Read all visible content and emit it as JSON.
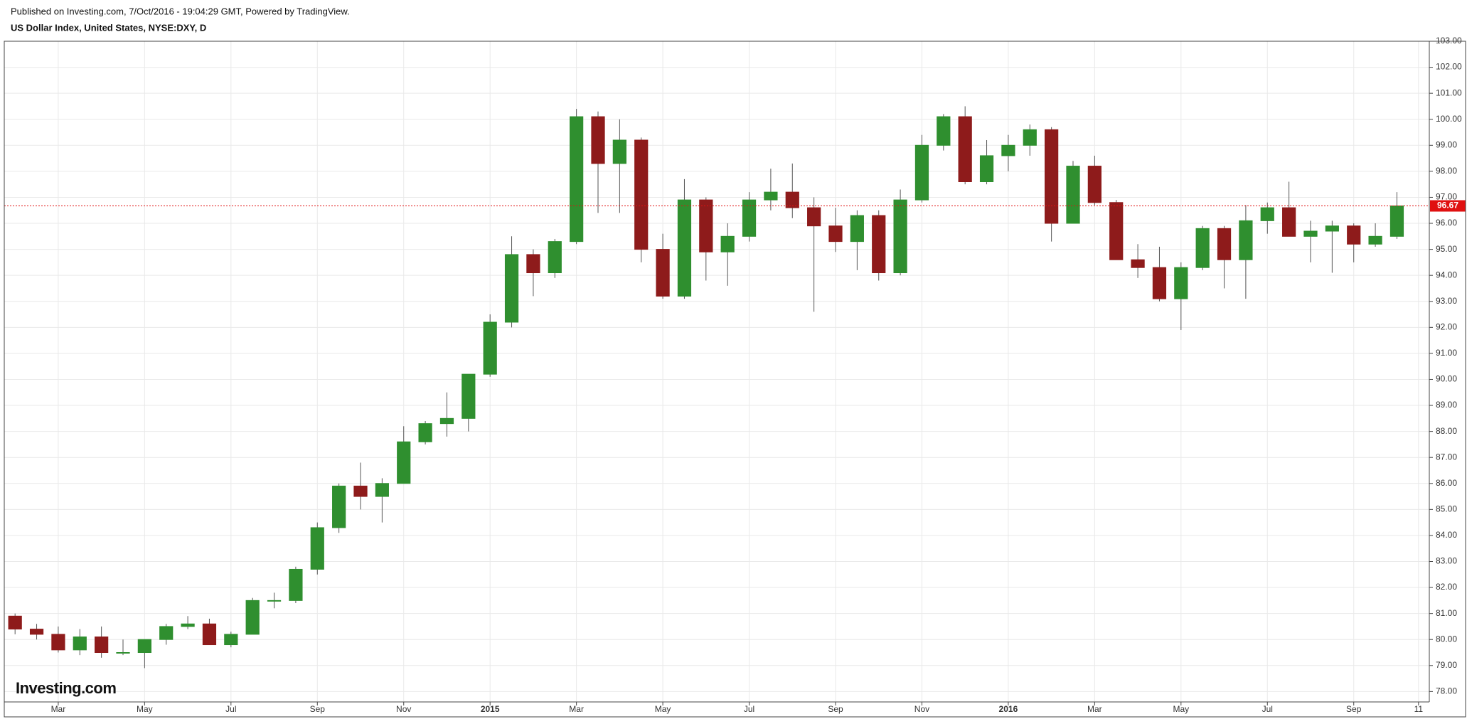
{
  "chart_data": {
    "type": "candlestick",
    "subtitle": "Published on Investing.com, 7/Oct/2016 - 19:04:29 GMT, Powered by TradingView.",
    "title": "US Dollar Index, United States, NYSE:DXY, D",
    "watermark": "Investing.com",
    "categories": [
      null,
      null,
      "Mar",
      null,
      null,
      null,
      "May",
      null,
      null,
      null,
      "Jul",
      null,
      null,
      null,
      "Sep",
      null,
      null,
      null,
      "Nov",
      null,
      null,
      null,
      "2015",
      null,
      null,
      null,
      "Mar",
      null,
      null,
      null,
      "May",
      null,
      null,
      null,
      "Jul",
      null,
      null,
      null,
      "Sep",
      null,
      null,
      null,
      "Nov",
      null,
      null,
      null,
      "2016",
      null,
      null,
      null,
      "Mar",
      null,
      null,
      null,
      "May",
      null,
      null,
      null,
      "Jul",
      null,
      null,
      null,
      "Sep",
      null,
      null,
      "11"
    ],
    "open": [
      80.9,
      80.4,
      80.2,
      79.6,
      80.1,
      79.5,
      79.5,
      80.0,
      80.5,
      80.6,
      79.8,
      80.2,
      81.5,
      81.5,
      82.7,
      84.3,
      85.9,
      85.5,
      86.0,
      87.6,
      88.3,
      88.5,
      90.2,
      92.2,
      94.8,
      94.1,
      95.3,
      100.1,
      98.3,
      99.2,
      95.0,
      93.2,
      96.9,
      94.9,
      95.5,
      96.9,
      97.2,
      96.6,
      95.9,
      95.3,
      96.3,
      94.1,
      96.9,
      99.0,
      100.1,
      97.6,
      98.6,
      99.0,
      99.6,
      96.0,
      98.2,
      96.8,
      94.6,
      94.3,
      93.1,
      94.3,
      95.8,
      94.6,
      96.1,
      96.6,
      95.5,
      95.7,
      95.9,
      95.2,
      95.5,
      null
    ],
    "high": [
      81.0,
      80.6,
      80.5,
      80.4,
      80.5,
      80.0,
      80.0,
      80.6,
      80.9,
      80.8,
      80.3,
      81.6,
      81.8,
      82.8,
      84.5,
      86.0,
      86.8,
      86.2,
      88.2,
      88.4,
      89.5,
      90.2,
      92.5,
      95.5,
      95.0,
      95.4,
      100.4,
      100.3,
      100.0,
      99.3,
      95.6,
      97.7,
      97.0,
      96.0,
      97.2,
      98.1,
      98.3,
      97.0,
      96.6,
      96.5,
      96.5,
      97.3,
      99.4,
      100.2,
      100.5,
      99.2,
      99.4,
      99.8,
      99.7,
      98.4,
      98.6,
      96.9,
      95.2,
      95.1,
      94.5,
      95.9,
      95.9,
      96.7,
      96.8,
      97.6,
      96.1,
      96.1,
      96.0,
      96.0,
      97.2,
      null
    ],
    "low": [
      80.2,
      80.0,
      79.5,
      79.4,
      79.3,
      79.4,
      78.9,
      79.8,
      80.4,
      79.8,
      79.7,
      80.2,
      81.2,
      81.4,
      82.5,
      84.1,
      85.0,
      84.5,
      86.0,
      87.5,
      87.8,
      88.0,
      90.1,
      92.0,
      93.2,
      93.9,
      95.2,
      96.4,
      96.4,
      94.5,
      93.1,
      93.1,
      93.8,
      93.6,
      95.3,
      96.5,
      96.2,
      92.6,
      94.9,
      94.2,
      93.8,
      94.0,
      96.8,
      98.8,
      97.5,
      97.5,
      98.0,
      98.6,
      95.3,
      96.0,
      96.7,
      94.6,
      93.9,
      93.0,
      91.9,
      94.2,
      93.5,
      93.1,
      95.6,
      95.5,
      94.5,
      94.1,
      94.5,
      95.1,
      95.4,
      null
    ],
    "close": [
      80.4,
      80.2,
      79.6,
      80.1,
      79.5,
      79.5,
      80.0,
      80.5,
      80.6,
      79.8,
      80.2,
      81.5,
      81.5,
      82.7,
      84.3,
      85.9,
      85.5,
      86.0,
      87.6,
      88.3,
      88.5,
      90.2,
      92.2,
      94.8,
      94.1,
      95.3,
      100.1,
      98.3,
      99.2,
      95.0,
      93.2,
      96.9,
      94.9,
      95.5,
      96.9,
      97.2,
      96.6,
      95.9,
      95.3,
      96.3,
      94.1,
      96.9,
      99.0,
      100.1,
      97.6,
      98.6,
      99.0,
      99.6,
      96.0,
      98.2,
      96.8,
      94.6,
      94.3,
      93.1,
      94.3,
      95.8,
      94.6,
      96.1,
      96.6,
      95.5,
      95.7,
      95.9,
      95.2,
      95.5,
      96.67,
      null
    ],
    "up_color": "#2f8f2f",
    "down_color": "#8e1b1b",
    "last_price_color": "#e01010",
    "ylim": [
      77.6,
      103.0
    ],
    "yticks": [
      {
        "value": 78,
        "label": "78.00"
      },
      {
        "value": 79,
        "label": "79.00"
      },
      {
        "value": 80,
        "label": "80.00"
      },
      {
        "value": 81,
        "label": "81.00"
      },
      {
        "value": 82,
        "label": "82.00"
      },
      {
        "value": 83,
        "label": "83.00"
      },
      {
        "value": 84,
        "label": "84.00"
      },
      {
        "value": 85,
        "label": "85.00"
      },
      {
        "value": 86,
        "label": "86.00"
      },
      {
        "value": 87,
        "label": "87.00"
      },
      {
        "value": 88,
        "label": "88.00"
      },
      {
        "value": 89,
        "label": "89.00"
      },
      {
        "value": 90,
        "label": "90.00"
      },
      {
        "value": 91,
        "label": "91.00"
      },
      {
        "value": 92,
        "label": "92.00"
      },
      {
        "value": 93,
        "label": "93.00"
      },
      {
        "value": 94,
        "label": "94.00"
      },
      {
        "value": 95,
        "label": "95.00"
      },
      {
        "value": 96,
        "label": "96.00"
      },
      {
        "value": 97,
        "label": "97.00"
      },
      {
        "value": 98,
        "label": "98.00"
      },
      {
        "value": 99,
        "label": "99.00"
      },
      {
        "value": 100,
        "label": "100.00"
      },
      {
        "value": 101,
        "label": "101.00"
      },
      {
        "value": 102,
        "label": "102.00"
      },
      {
        "value": 103,
        "label": "103.00"
      }
    ],
    "grid": true
  }
}
